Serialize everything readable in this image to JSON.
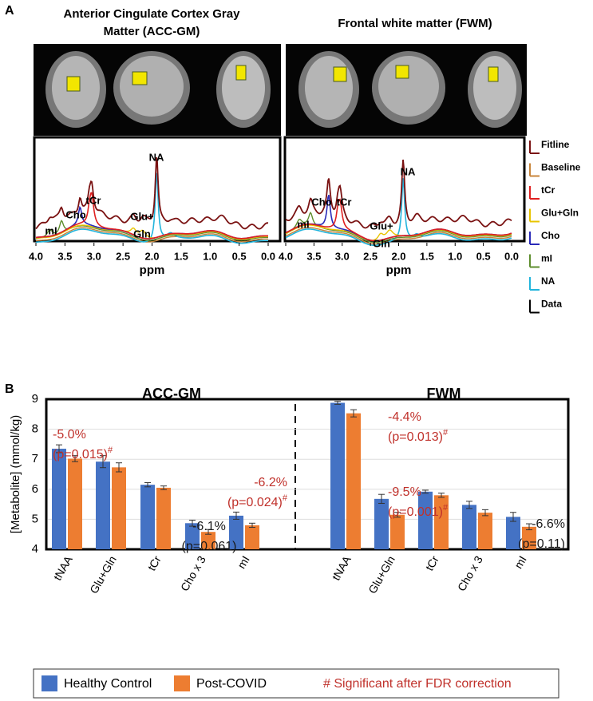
{
  "panel_a": {
    "label": "A",
    "titles": [
      [
        "Anterior Cingulate Cortex Gray",
        "Matter (ACC-GM)"
      ],
      [
        "Frontal white matter (FWM)"
      ]
    ],
    "peak_labels": [
      [
        [
          "NA"
        ],
        [
          "tCr"
        ],
        [
          "Cho"
        ],
        [
          "mI"
        ],
        [
          "Glu+",
          "Gln"
        ]
      ],
      [
        [
          "NA"
        ],
        [
          "tCr"
        ],
        [
          "Cho"
        ],
        [
          "mI"
        ],
        [
          "Glu+",
          "Gln"
        ]
      ]
    ],
    "legend": [
      {
        "name": "Fitline",
        "color": "#7a1212"
      },
      {
        "name": "Baseline",
        "color": "#c8843a"
      },
      {
        "name": "tCr",
        "color": "#e02020"
      },
      {
        "name": "Glu+Gln",
        "color": "#e8c400"
      },
      {
        "name": "Cho",
        "color": "#2a2ab8"
      },
      {
        "name": "mI",
        "color": "#5e8e2e"
      },
      {
        "name": "NA",
        "color": "#22b4dc"
      },
      {
        "name": "Data",
        "color": "#000000"
      }
    ],
    "xlabel": "ppm",
    "xlim": [
      4,
      0
    ],
    "xticks": [
      {
        "value": 4,
        "label": "4.0"
      },
      {
        "value": 3.5,
        "label": "3.5"
      },
      {
        "value": 3,
        "label": "3.0"
      },
      {
        "value": 2.5,
        "label": "2.5"
      },
      {
        "value": 2,
        "label": "2.0"
      },
      {
        "value": 1.5,
        "label": "1.5"
      },
      {
        "value": 1,
        "label": "1.0"
      },
      {
        "value": 0.5,
        "label": "0.5"
      },
      {
        "value": 0,
        "label": "0.0"
      }
    ]
  },
  "chart_data": {
    "type": "bar",
    "label": "B",
    "ylabel": "[Metabolite] (mmol/kg)",
    "groups": [
      {
        "title": "ACC-GM"
      },
      {
        "title": "FWM"
      }
    ],
    "categories": [
      "tNAA",
      "Glu+Gln",
      "tCr",
      "Cho x 3",
      "mI",
      "tNAA",
      "Glu+Gln",
      "tCr",
      "Cho x 3",
      "mI"
    ],
    "series": [
      {
        "name": "Healthy Control",
        "color": "#4472c4",
        "values": [
          7.35,
          6.92,
          6.15,
          4.87,
          5.12,
          8.88,
          5.68,
          5.92,
          5.48,
          5.08
        ],
        "errors": [
          0.13,
          0.2,
          0.07,
          0.1,
          0.12,
          0.05,
          0.15,
          0.05,
          0.12,
          0.15
        ]
      },
      {
        "name": "Post-COVID",
        "color": "#ed7d31",
        "values": [
          7.02,
          6.73,
          6.05,
          4.58,
          4.8,
          8.53,
          5.15,
          5.8,
          5.22,
          4.75
        ],
        "errors": [
          0.1,
          0.15,
          0.06,
          0.08,
          0.07,
          0.12,
          0.08,
          0.07,
          0.1,
          0.1
        ]
      }
    ],
    "ylim": [
      4,
      9
    ],
    "yticks": [
      4,
      5,
      6,
      7,
      8,
      9
    ],
    "grid": true,
    "annotations": [
      {
        "lines": [
          "-5.0%",
          "(p=0.015)"
        ],
        "mark": "#",
        "color": "#c0312b"
      },
      {
        "lines": [
          "-6.2%",
          "(p=0.024)"
        ],
        "mark": "#",
        "color": "#c0312b"
      },
      {
        "lines": [
          "-6.1%",
          "(p=0.061)"
        ],
        "color": "#1a1a1a"
      },
      {
        "lines": [
          "-4.4%",
          "(p=0.013)"
        ],
        "mark": "#",
        "color": "#c0312b"
      },
      {
        "lines": [
          "-9.5%",
          "(p=0.001)"
        ],
        "mark": "#",
        "color": "#c0312b"
      },
      {
        "lines": [
          "-6.6%",
          "(p=0.11)"
        ],
        "color": "#1a1a1a"
      }
    ],
    "legend_note": "# Significant after FDR correction"
  }
}
